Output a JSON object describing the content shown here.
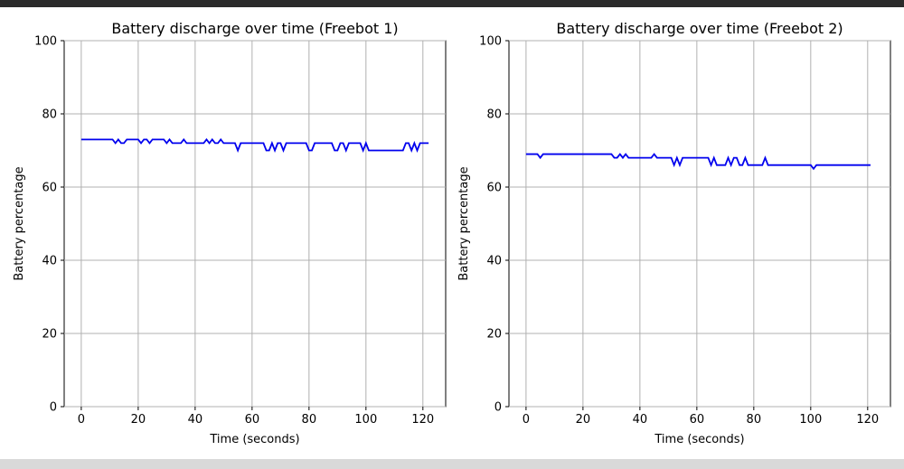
{
  "window": {
    "top_bar_color": "#2b2b2b",
    "bottom_bar_color": "#d9d9d9"
  },
  "chart_data": [
    {
      "type": "line",
      "title": "Battery discharge over time (Freebot 1)",
      "xlabel": "Time (seconds)",
      "ylabel": "Battery percentage",
      "xlim": [
        -6,
        128
      ],
      "ylim": [
        0,
        100
      ],
      "xticks": [
        0,
        20,
        40,
        60,
        80,
        100,
        120
      ],
      "yticks": [
        0,
        20,
        40,
        60,
        80,
        100
      ],
      "grid": true,
      "line_color": "#0000ee",
      "series": [
        {
          "x": [
            0,
            11,
            12,
            13,
            14,
            15,
            16,
            20,
            21,
            22,
            23,
            24,
            25,
            26,
            29,
            30,
            31,
            32,
            35,
            36,
            37,
            43,
            44,
            45,
            46,
            47,
            48,
            49,
            50,
            54,
            55,
            56,
            64,
            65,
            66,
            67,
            68,
            69,
            70,
            71,
            72,
            79,
            80,
            81,
            82,
            88,
            89,
            90,
            91,
            92,
            93,
            94,
            98,
            99,
            100,
            101,
            113,
            114,
            115,
            116,
            117,
            118,
            119,
            122
          ],
          "y": [
            73,
            73,
            72,
            73,
            72,
            72,
            73,
            73,
            72,
            73,
            73,
            72,
            73,
            73,
            73,
            72,
            73,
            72,
            72,
            73,
            72,
            72,
            73,
            72,
            73,
            72,
            72,
            73,
            72,
            72,
            70,
            72,
            72,
            70,
            70,
            72,
            70,
            72,
            72,
            70,
            72,
            72,
            70,
            70,
            72,
            72,
            70,
            70,
            72,
            72,
            70,
            72,
            72,
            70,
            72,
            70,
            70,
            72,
            72,
            70,
            72,
            70,
            72,
            72
          ]
        }
      ]
    },
    {
      "type": "line",
      "title": "Battery discharge over time (Freebot 2)",
      "xlabel": "Time (seconds)",
      "ylabel": "Battery percentage",
      "xlim": [
        -6,
        128
      ],
      "ylim": [
        0,
        100
      ],
      "xticks": [
        0,
        20,
        40,
        60,
        80,
        100,
        120
      ],
      "yticks": [
        0,
        20,
        40,
        60,
        80,
        100
      ],
      "grid": true,
      "line_color": "#0000ee",
      "series": [
        {
          "x": [
            0,
            4,
            5,
            6,
            30,
            31,
            32,
            33,
            34,
            35,
            36,
            37,
            44,
            45,
            46,
            51,
            52,
            53,
            54,
            55,
            64,
            65,
            66,
            67,
            70,
            71,
            72,
            73,
            74,
            75,
            76,
            77,
            78,
            83,
            84,
            85,
            100,
            101,
            102,
            121
          ],
          "y": [
            69,
            69,
            68,
            69,
            69,
            68,
            68,
            69,
            68,
            69,
            68,
            68,
            68,
            69,
            68,
            68,
            66,
            68,
            66,
            68,
            68,
            66,
            68,
            66,
            66,
            68,
            66,
            68,
            68,
            66,
            66,
            68,
            66,
            66,
            68,
            66,
            66,
            65,
            66,
            66
          ]
        }
      ]
    }
  ]
}
